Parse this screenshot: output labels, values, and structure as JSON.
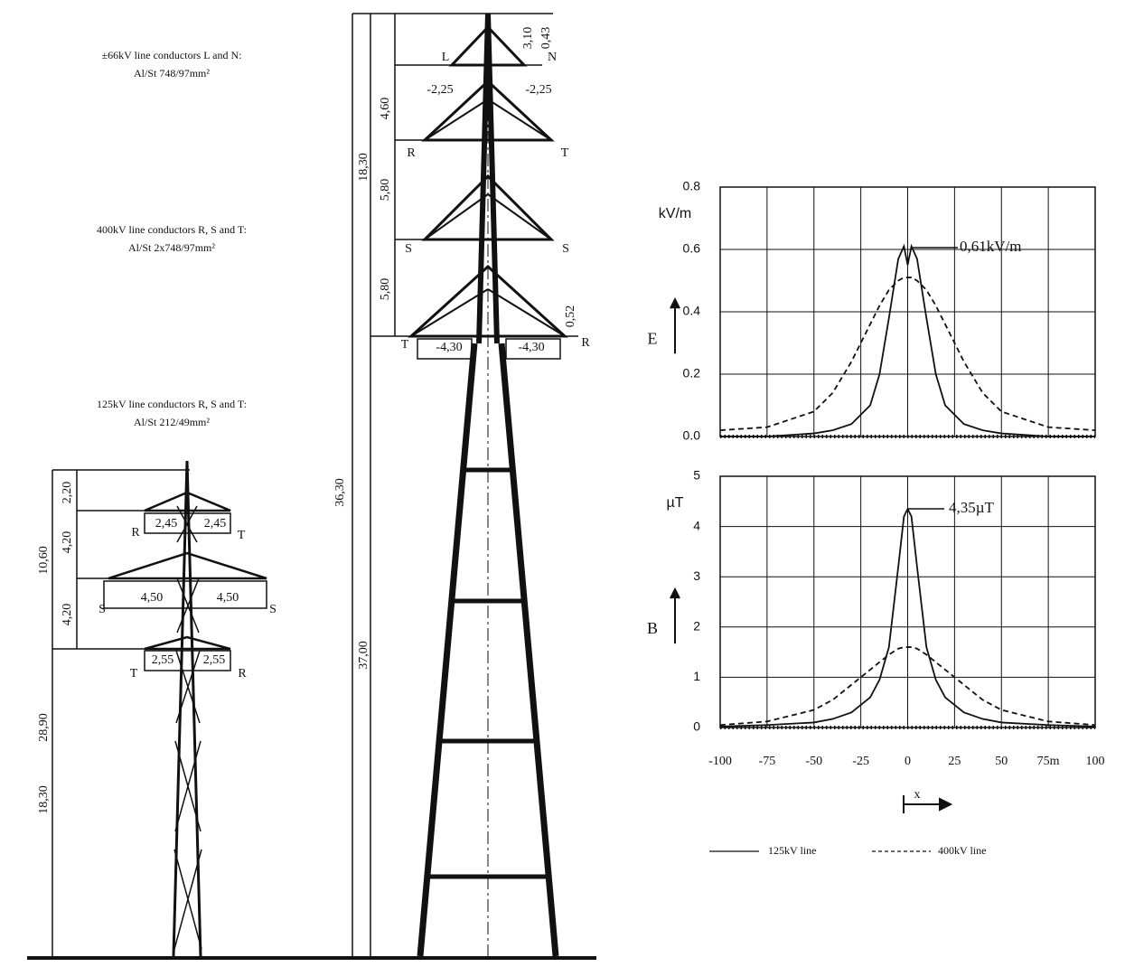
{
  "diagram": {
    "notes": [
      "±66kV line conductors L and N:",
      "Al/St 748/97mm²",
      "400kV line conductors R, S and T:",
      "Al/St 2x748/97mm²",
      "125kV line conductors R, S and T:",
      "Al/St 212/49mm²"
    ],
    "big_tower": [
      "3,10",
      "0,43",
      "L",
      "N",
      "-2,25",
      "-2,25",
      "4,60",
      "R",
      "T",
      "5,80",
      "S",
      "S",
      "5,80",
      "T",
      "R",
      "-4,30",
      "-4,30",
      "0,52",
      "18,30",
      "36,30",
      "37,00"
    ],
    "small_tower": [
      "2,20",
      "4,20",
      "4,20",
      "10,60",
      "R",
      "2,45",
      "2,45",
      "T",
      "S",
      "4,50",
      "4,50",
      "S",
      "T",
      "2,55",
      "2,55",
      "R",
      "28,90",
      "18,30"
    ]
  },
  "chart_data": [
    {
      "type": "line",
      "y_label": "kV/m",
      "y_symbol": "E",
      "annotation": "0,61kV/m",
      "x": [
        -100,
        -75,
        -50,
        -40,
        -30,
        -20,
        -15,
        -10,
        -5,
        -2,
        0,
        2,
        5,
        10,
        15,
        20,
        30,
        40,
        50,
        75,
        100
      ],
      "series": [
        {
          "name": "125kV line",
          "color": "#111111",
          "style": "solid",
          "values": [
            0.0,
            0.0,
            0.01,
            0.02,
            0.04,
            0.1,
            0.2,
            0.38,
            0.57,
            0.61,
            0.55,
            0.61,
            0.57,
            0.38,
            0.2,
            0.1,
            0.04,
            0.02,
            0.01,
            0.0,
            0.0
          ]
        },
        {
          "name": "400kV line",
          "color": "#111111",
          "style": "dashed",
          "values": [
            0.02,
            0.03,
            0.08,
            0.14,
            0.24,
            0.36,
            0.42,
            0.47,
            0.5,
            0.51,
            0.51,
            0.51,
            0.5,
            0.47,
            0.42,
            0.36,
            0.24,
            0.14,
            0.08,
            0.03,
            0.02
          ]
        }
      ],
      "xlim": [
        -100,
        100
      ],
      "ylim": [
        0,
        0.8
      ],
      "yticks": [
        {
          "value": 0,
          "label": "0.0"
        },
        0.2,
        0.4,
        0.6,
        0.8
      ],
      "xticks": [
        -100,
        -75,
        -50,
        -25,
        0,
        25,
        50,
        {
          "value": 75,
          "label": "75m"
        },
        100
      ],
      "grid": true
    },
    {
      "type": "line",
      "y_label": "µT",
      "y_symbol": "B",
      "annotation": "4,35µT",
      "x_label": "x",
      "x": [
        -100,
        -75,
        -50,
        -40,
        -30,
        -20,
        -15,
        -10,
        -5,
        -2,
        0,
        2,
        5,
        10,
        15,
        20,
        30,
        40,
        50,
        75,
        100
      ],
      "series": [
        {
          "name": "125kV line",
          "color": "#111111",
          "style": "solid",
          "values": [
            0.02,
            0.05,
            0.1,
            0.17,
            0.3,
            0.6,
            0.95,
            1.6,
            3.2,
            4.2,
            4.35,
            4.2,
            3.2,
            1.6,
            0.95,
            0.6,
            0.3,
            0.17,
            0.1,
            0.05,
            0.02
          ]
        },
        {
          "name": "400kV line",
          "color": "#111111",
          "style": "dashed",
          "values": [
            0.05,
            0.12,
            0.35,
            0.55,
            0.85,
            1.15,
            1.3,
            1.45,
            1.57,
            1.6,
            1.6,
            1.6,
            1.57,
            1.45,
            1.3,
            1.15,
            0.85,
            0.55,
            0.35,
            0.12,
            0.05
          ]
        }
      ],
      "xlim": [
        -100,
        100
      ],
      "ylim": [
        0,
        5
      ],
      "yticks": [
        0,
        1,
        2,
        3,
        4,
        5
      ],
      "xticks": [
        -100,
        -75,
        -50,
        -25,
        0,
        25,
        50,
        {
          "value": 75,
          "label": "75m"
        },
        100
      ],
      "grid": true
    }
  ]
}
